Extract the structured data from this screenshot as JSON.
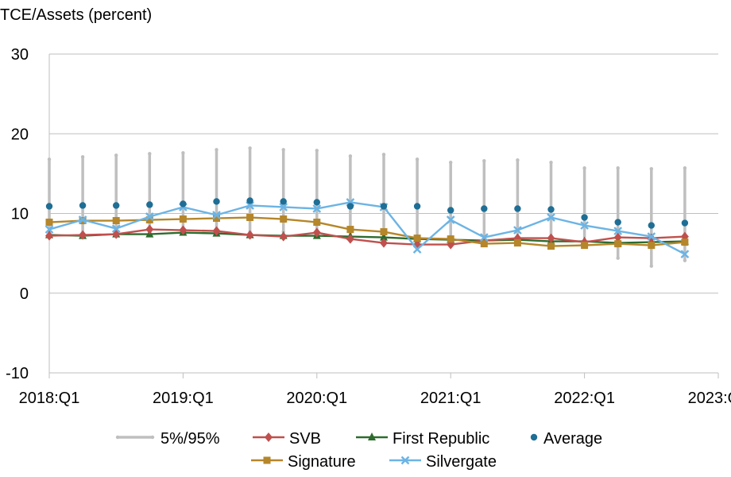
{
  "chart_data": {
    "type": "line",
    "ylabel": "TCE/Assets (percent)",
    "ylim": [
      -10,
      30
    ],
    "yticks": [
      30,
      20,
      10,
      0,
      -10
    ],
    "grid": "horizontal",
    "legend_position": "bottom",
    "x": [
      "2018:Q1",
      "2018:Q2",
      "2018:Q3",
      "2018:Q4",
      "2019:Q1",
      "2019:Q2",
      "2019:Q3",
      "2019:Q4",
      "2020:Q1",
      "2020:Q2",
      "2020:Q3",
      "2020:Q4",
      "2021:Q1",
      "2021:Q2",
      "2021:Q3",
      "2021:Q4",
      "2022:Q1",
      "2022:Q2",
      "2022:Q3",
      "2022:Q4"
    ],
    "xtick_labels": [
      "2018:Q1",
      "2019:Q1",
      "2020:Q1",
      "2021:Q1",
      "2022:Q1",
      "2023:Q1"
    ],
    "xtick_index": [
      0,
      4,
      8,
      12,
      16,
      20
    ],
    "band": {
      "name": "5%/95%",
      "color": "#bfbfbf",
      "low": [
        7.5,
        7.5,
        7.5,
        7.6,
        7.6,
        7.7,
        7.7,
        7.7,
        7.6,
        7.5,
        7.3,
        7.1,
        6.8,
        6.6,
        6.5,
        6.3,
        6.0,
        4.4,
        3.4,
        4.1
      ],
      "high": [
        16.8,
        17.1,
        17.3,
        17.5,
        17.6,
        18.0,
        18.2,
        18.0,
        17.9,
        17.2,
        17.4,
        16.8,
        16.4,
        16.6,
        16.7,
        16.4,
        15.7,
        15.7,
        15.6,
        15.7
      ]
    },
    "series": [
      {
        "name": "SVB",
        "color": "#c0504d",
        "marker": "diamond",
        "values": [
          7.2,
          7.3,
          7.4,
          8.0,
          7.9,
          7.8,
          7.3,
          7.1,
          7.6,
          6.8,
          6.3,
          6.1,
          6.1,
          6.6,
          6.9,
          6.9,
          6.4,
          7.0,
          6.9,
          7.1
        ]
      },
      {
        "name": "First Republic",
        "color": "#2e6b2e",
        "marker": "triangle",
        "values": [
          7.3,
          7.2,
          7.4,
          7.4,
          7.6,
          7.5,
          7.3,
          7.2,
          7.2,
          7.1,
          7.0,
          6.8,
          6.7,
          6.6,
          6.7,
          6.5,
          6.5,
          6.3,
          6.4,
          6.5
        ]
      },
      {
        "name": "Average",
        "color": "#1f6e95",
        "marker": "dot",
        "line": false,
        "values": [
          10.9,
          11.0,
          11.0,
          11.1,
          11.2,
          11.5,
          11.6,
          11.5,
          11.4,
          10.9,
          10.9,
          10.9,
          10.4,
          10.6,
          10.6,
          10.5,
          9.5,
          8.9,
          8.5,
          8.8
        ]
      },
      {
        "name": "Signature",
        "color": "#b5862a",
        "marker": "square",
        "values": [
          8.9,
          9.1,
          9.1,
          9.2,
          9.3,
          9.4,
          9.5,
          9.3,
          8.9,
          8.0,
          7.7,
          6.9,
          6.8,
          6.2,
          6.3,
          5.9,
          6.0,
          6.2,
          6.0,
          6.4
        ]
      },
      {
        "name": "Silvergate",
        "color": "#6cb4e4",
        "marker": "x",
        "values": [
          8.0,
          9.2,
          8.1,
          9.6,
          10.8,
          9.8,
          11.0,
          10.8,
          10.6,
          11.4,
          10.8,
          5.5,
          9.2,
          7.0,
          7.9,
          9.5,
          8.5,
          7.8,
          7.1,
          4.9
        ]
      }
    ]
  }
}
